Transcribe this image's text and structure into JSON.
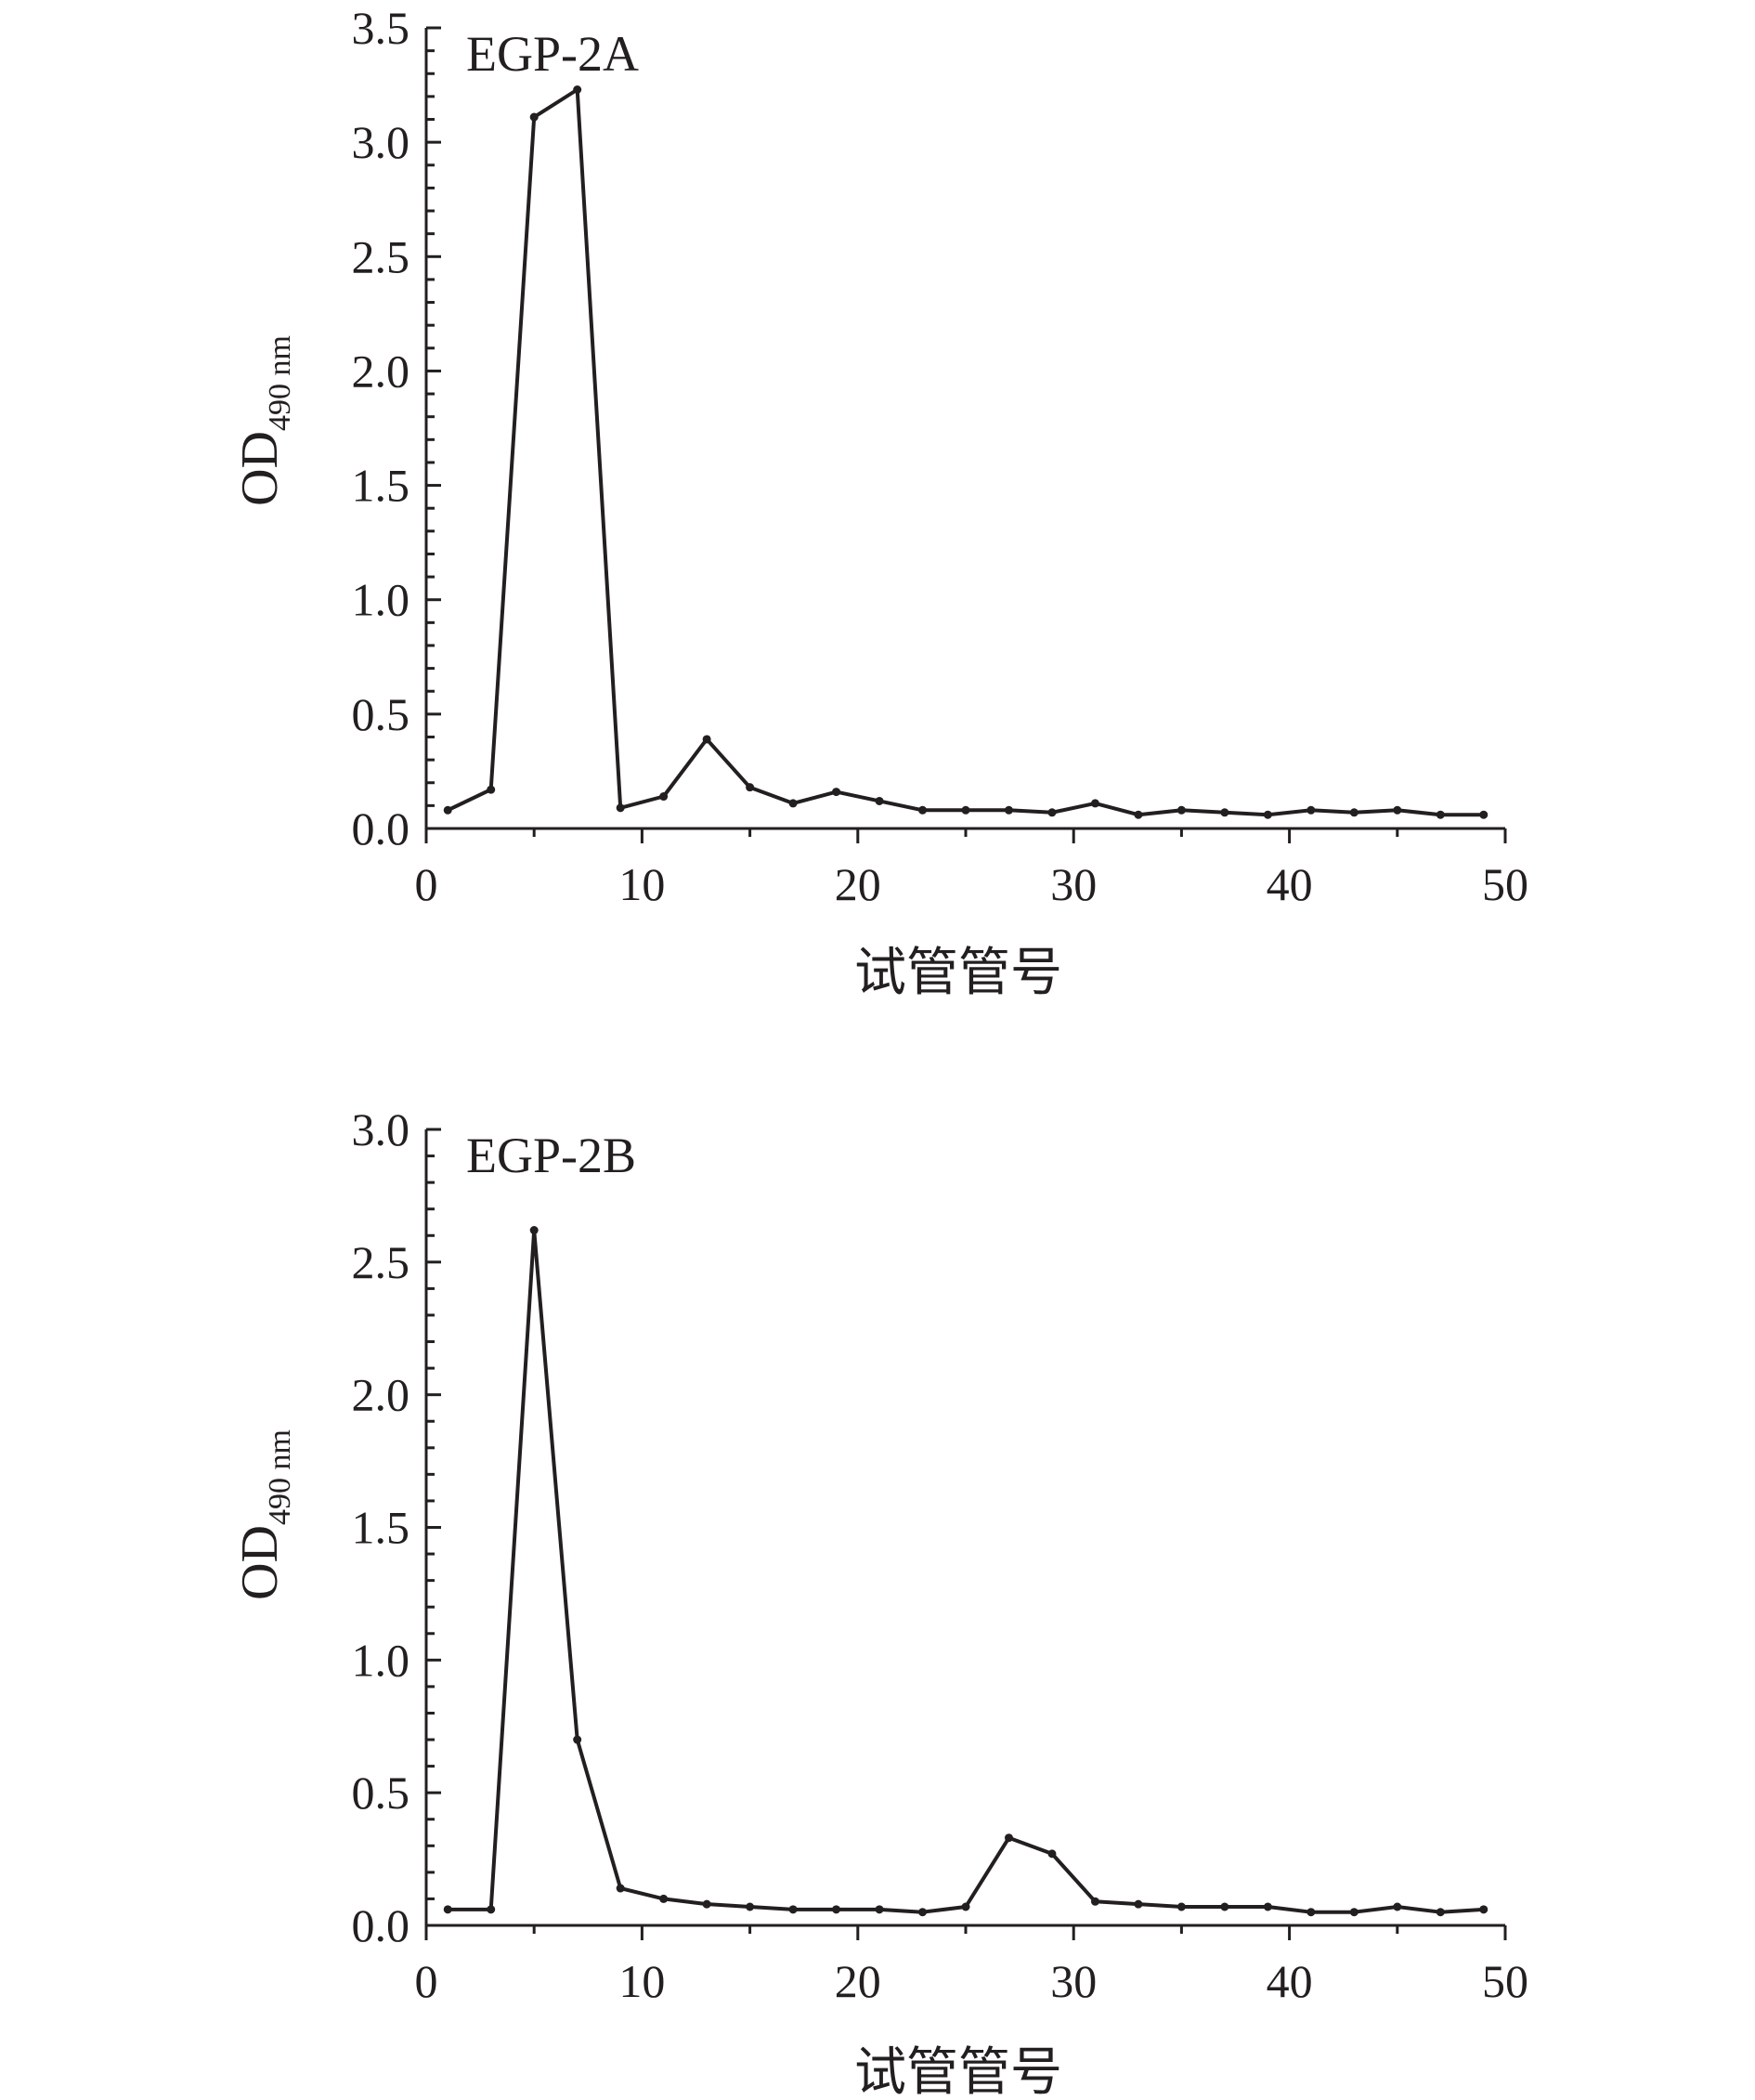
{
  "chart_data": [
    {
      "type": "line",
      "title": "EGP-2A",
      "ylabel": "OD",
      "ylabel_sub": "490 nm",
      "xlabel": "试管管号",
      "xlim": [
        0,
        50
      ],
      "ylim": [
        0,
        3.5
      ],
      "xticks": [
        0,
        10,
        20,
        30,
        40,
        50
      ],
      "xtick_labels": [
        "0",
        "10",
        "20",
        "30",
        "40",
        "50"
      ],
      "yticks": [
        0,
        0.5,
        1.0,
        1.5,
        2.0,
        2.5,
        3.0,
        3.5
      ],
      "ytick_labels": [
        "0.0",
        "0.5",
        "1.0",
        "1.5",
        "2.0",
        "2.5",
        "3.0",
        "3.5"
      ],
      "grid": false,
      "legend": "none",
      "series": [
        {
          "x": [
            1,
            3,
            5,
            7,
            9,
            11,
            13,
            15,
            17,
            19,
            21,
            23,
            25,
            27,
            29,
            31,
            33,
            35,
            37,
            39,
            41,
            43,
            45,
            47,
            49
          ],
          "values": [
            0.08,
            0.17,
            3.11,
            3.23,
            0.09,
            0.14,
            0.39,
            0.18,
            0.11,
            0.16,
            0.12,
            0.08,
            0.08,
            0.08,
            0.07,
            0.11,
            0.06,
            0.08,
            0.07,
            0.06,
            0.08,
            0.07,
            0.08,
            0.06,
            0.06
          ]
        }
      ]
    },
    {
      "type": "line",
      "title": "EGP-2B",
      "ylabel": "OD",
      "ylabel_sub": "490 nm",
      "xlabel": "试管管号",
      "xlim": [
        0,
        50
      ],
      "ylim": [
        0,
        3.0
      ],
      "xticks": [
        0,
        10,
        20,
        30,
        40,
        50
      ],
      "xtick_labels": [
        "0",
        "10",
        "20",
        "30",
        "40",
        "50"
      ],
      "yticks": [
        0,
        0.5,
        1.0,
        1.5,
        2.0,
        2.5,
        3.0
      ],
      "ytick_labels": [
        "0.0",
        "0.5",
        "1.0",
        "1.5",
        "2.0",
        "2.5",
        "3.0"
      ],
      "grid": false,
      "legend": "none",
      "series": [
        {
          "x": [
            1,
            3,
            5,
            7,
            9,
            11,
            13,
            15,
            17,
            19,
            21,
            23,
            25,
            27,
            29,
            31,
            33,
            35,
            37,
            39,
            41,
            43,
            45,
            47,
            49
          ],
          "values": [
            0.06,
            0.06,
            2.62,
            0.7,
            0.14,
            0.1,
            0.08,
            0.07,
            0.06,
            0.06,
            0.06,
            0.05,
            0.07,
            0.33,
            0.27,
            0.09,
            0.08,
            0.07,
            0.07,
            0.07,
            0.05,
            0.05,
            0.07,
            0.05,
            0.06
          ]
        }
      ]
    }
  ]
}
